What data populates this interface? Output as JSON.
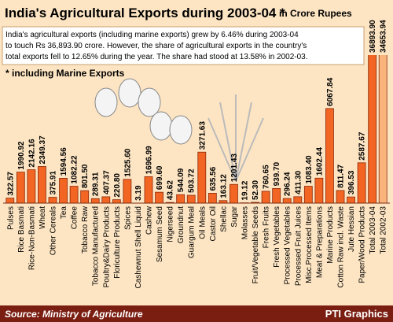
{
  "chart_data": {
    "type": "bar",
    "title": "India's Agricultural Exports during 2003-04  *",
    "subtitle": "in Crore Rupees",
    "note": [
      "India's agricultural exports (including marine exports) grew by 6.46%  during 2003-04",
      "to touch Rs 36,893.90 crore. However, the share of agricultural exports in the country's",
      "total exports fell to 12.65% during the year. The share had stood at 13.58% in 2002-03."
    ],
    "annotation": "* including Marine Exports",
    "categories": [
      "Pulses",
      "Rice Basmati",
      "Rice-Non-Basmati",
      "Wheat",
      "Other Cereals",
      "Tea",
      "Coffee",
      "Tobacco Raw",
      "Tobacco Manufactured",
      "Poultry&Dairy Products",
      "Floriculture Products",
      "Spices",
      "Cashewnut Shell Liquid",
      "Cashew",
      "Sesamum Seed",
      "Nigerseed",
      "Groundnut",
      "Guargum Meal",
      "Oil Meals",
      "Castor Oil",
      "Shellac",
      "Sugar",
      "Molasses",
      "Fruit/Vegetable Seeds",
      "Fresh Fruits",
      "Fresh Vegetables",
      "Processed Vegetables",
      "Processed Fruit Juices",
      "Misc.Processed Items",
      "Meat & Preparations",
      "Marine Products",
      "Cotton Raw incl. Waste",
      "Jute Hessian",
      "Paper/Wood Products",
      "Total 2003-04",
      "Total 2002-03"
    ],
    "values": [
      322.57,
      1990.92,
      2142.16,
      2349.37,
      375.91,
      1594.56,
      1082.22,
      801.5,
      289.31,
      407.37,
      220.8,
      1525.6,
      3.19,
      1696.99,
      699.6,
      43.62,
      544.09,
      503.72,
      3271.63,
      635.56,
      163.12,
      1201.43,
      19.12,
      52.3,
      760.65,
      939.7,
      296.24,
      411.3,
      1083.4,
      1602.44,
      6067.84,
      811.47,
      396.53,
      2587.67,
      36893.9,
      34653.94
    ],
    "value_labels": [
      "322.57",
      "1990.92",
      "2142.16",
      "2349.37",
      "375.91",
      "1594.56",
      "1082.22",
      "801.50",
      "289.31",
      "407.37",
      "220.80",
      "1525.60",
      "3.19",
      "1696.99",
      "699.60",
      "43.62",
      "544.09",
      "503.72",
      "3271.63",
      "635.56",
      "163.12",
      "1201.43",
      "19.12",
      "52.30",
      "760.65",
      "939.70",
      "296.24",
      "411.30",
      "1083.40",
      "1602.44",
      "6067.84",
      "811.47",
      "396.53",
      "2587.67",
      "36893.90",
      "34653.94"
    ],
    "colors": [
      "#f26522",
      "#f26522",
      "#f26522",
      "#f26522",
      "#f26522",
      "#f26522",
      "#f26522",
      "#f26522",
      "#f26522",
      "#f26522",
      "#f26522",
      "#f26522",
      "#f26522",
      "#f26522",
      "#f26522",
      "#f26522",
      "#f26522",
      "#f26522",
      "#f26522",
      "#f26522",
      "#f26522",
      "#f26522",
      "#f26522",
      "#f26522",
      "#f26522",
      "#f26522",
      "#f26522",
      "#f26522",
      "#f26522",
      "#f26522",
      "#f26522",
      "#f26522",
      "#f26522",
      "#f26522",
      "#f26522",
      "#f9b47c"
    ],
    "source": "Source: Ministry of Agriculture",
    "credit": "PTI Graphics"
  }
}
